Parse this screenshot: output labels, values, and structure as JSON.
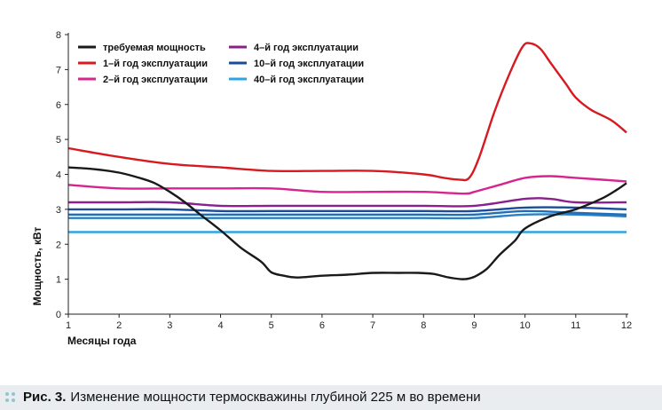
{
  "chart_data": {
    "type": "line",
    "xlabel": "Месяцы года",
    "ylabel": "Мощность, кВт",
    "xlim": [
      1,
      12
    ],
    "ylim": [
      0,
      8
    ],
    "xticks": [
      1,
      2,
      3,
      4,
      5,
      6,
      7,
      8,
      9,
      10,
      11,
      12
    ],
    "yticks": [
      0,
      1,
      2,
      3,
      4,
      5,
      6,
      7,
      8
    ],
    "grid": false,
    "legend_position": "top-left",
    "series": [
      {
        "name": "требуемая мощность",
        "color": "#1a1a1a",
        "x": [
          1,
          1.5,
          2,
          2.4,
          2.7,
          3,
          3.3,
          3.6,
          4,
          4.4,
          4.8,
          5,
          5.25,
          5.5,
          6,
          6.5,
          7,
          7.5,
          7.9,
          8.2,
          8.5,
          8.8,
          9,
          9.25,
          9.5,
          9.8,
          10,
          10.5,
          11,
          11.5,
          11.8,
          12
        ],
        "y": [
          4.2,
          4.15,
          4.05,
          3.9,
          3.75,
          3.5,
          3.2,
          2.85,
          2.4,
          1.9,
          1.5,
          1.2,
          1.1,
          1.05,
          1.1,
          1.13,
          1.18,
          1.18,
          1.18,
          1.15,
          1.05,
          1.0,
          1.07,
          1.3,
          1.7,
          2.1,
          2.45,
          2.8,
          3.0,
          3.3,
          3.55,
          3.75
        ]
      },
      {
        "name": "1-й год эксплуатации",
        "color": "#d71920",
        "x": [
          1,
          2,
          3,
          4,
          5,
          6,
          7,
          8,
          8.4,
          8.7,
          8.9,
          9.1,
          9.4,
          9.7,
          9.95,
          10.1,
          10.3,
          10.5,
          10.8,
          11,
          11.3,
          11.7,
          12
        ],
        "y": [
          4.75,
          4.5,
          4.3,
          4.2,
          4.1,
          4.1,
          4.1,
          4.0,
          3.9,
          3.85,
          3.9,
          4.5,
          5.8,
          6.9,
          7.65,
          7.75,
          7.6,
          7.2,
          6.6,
          6.2,
          5.85,
          5.55,
          5.2
        ]
      },
      {
        "name": "2-й год эксплуатации",
        "color": "#d6258c",
        "x": [
          1,
          2,
          3,
          4,
          5,
          6,
          7,
          8,
          8.8,
          9,
          9.5,
          10,
          10.5,
          11,
          12
        ],
        "y": [
          3.7,
          3.6,
          3.6,
          3.6,
          3.6,
          3.5,
          3.5,
          3.5,
          3.45,
          3.5,
          3.7,
          3.9,
          3.95,
          3.9,
          3.8
        ]
      },
      {
        "name": "4-й год эксплуатации",
        "color": "#8b1f8f",
        "x": [
          1,
          2,
          3,
          4,
          5,
          6,
          7,
          8,
          9,
          10,
          10.5,
          11,
          12
        ],
        "y": [
          3.2,
          3.2,
          3.2,
          3.1,
          3.1,
          3.1,
          3.1,
          3.1,
          3.1,
          3.3,
          3.3,
          3.2,
          3.2
        ]
      },
      {
        "name": "10-й год эксплуатации",
        "color": "#1b4b9b",
        "x": [
          1,
          2,
          3,
          4,
          5,
          6,
          7,
          8,
          9,
          10,
          11,
          12
        ],
        "y": [
          3.0,
          3.0,
          3.0,
          2.95,
          2.95,
          2.95,
          2.95,
          2.95,
          2.95,
          3.05,
          3.05,
          3.0
        ]
      },
      {
        "name": "10-й год эксплуатации (2)",
        "color": "#1f6fb8",
        "x": [
          1,
          2,
          3,
          4,
          5,
          6,
          7,
          8,
          9,
          10,
          11,
          12
        ],
        "y": [
          2.85,
          2.85,
          2.85,
          2.85,
          2.85,
          2.85,
          2.85,
          2.85,
          2.85,
          2.95,
          2.9,
          2.85
        ]
      },
      {
        "name": "10-й год эксплуатации (3)",
        "color": "#2a80c4",
        "x": [
          1,
          2,
          3,
          4,
          5,
          6,
          7,
          8,
          9,
          10,
          11,
          12
        ],
        "y": [
          2.75,
          2.75,
          2.75,
          2.75,
          2.75,
          2.75,
          2.75,
          2.75,
          2.75,
          2.85,
          2.85,
          2.8
        ]
      },
      {
        "name": "40-й год эксплуатации",
        "color": "#2ba7e0",
        "x": [
          1,
          12
        ],
        "y": [
          2.35,
          2.35
        ]
      }
    ],
    "legend": [
      {
        "label": "требуемая мощность",
        "color": "#1a1a1a"
      },
      {
        "label": "1–й год эксплуатации",
        "color": "#d71920"
      },
      {
        "label": "2–й год эксплуатации",
        "color": "#d6258c"
      },
      {
        "label": "4–й год эксплуатации",
        "color": "#8b1f8f"
      },
      {
        "label": "10–й год эксплуатации",
        "color": "#1b4b9b"
      },
      {
        "label": "40–й год эксплуатации",
        "color": "#2ba7e0"
      }
    ]
  },
  "caption": {
    "label": "Рис. 3.",
    "text": "Изменение мощности термоскважины глубиной 225 м во времени"
  }
}
